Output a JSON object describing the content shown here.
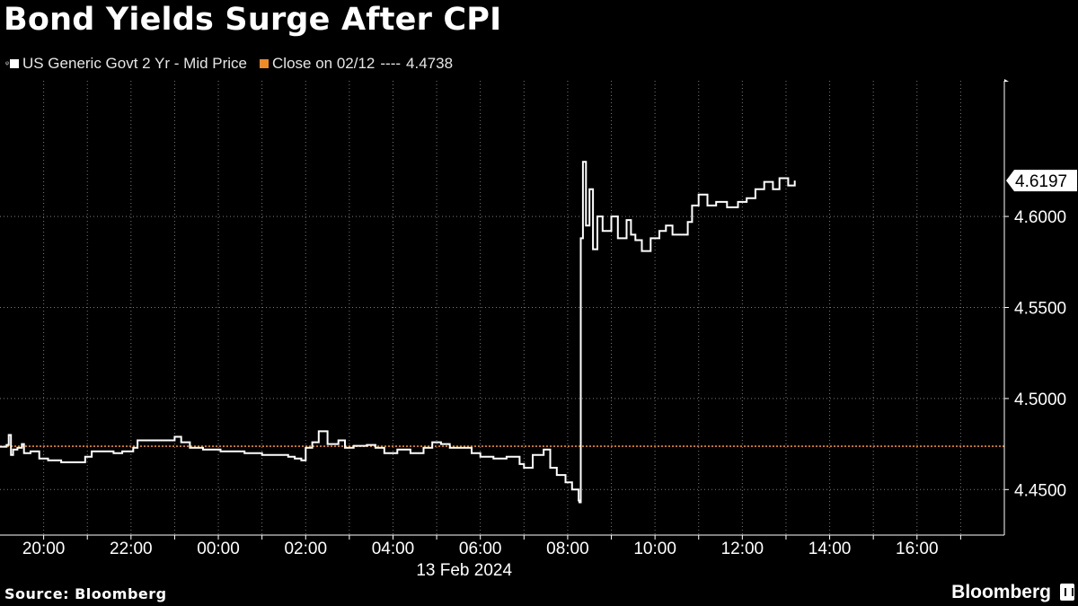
{
  "title": "Bond Yields Surge After CPI",
  "legend": {
    "series_prefix_glyph": "ᵠ",
    "series_label": "US Generic Govt 2 Yr - Mid Price",
    "reference_label": "Close on 02/12",
    "reference_dashes": "----",
    "reference_value_text": "4.4738"
  },
  "colors": {
    "background": "#000000",
    "series": "#ffffff",
    "reference": "#f08a24",
    "grid": "#7a7a7a"
  },
  "last_value_label": "4.6197",
  "footer": {
    "source": "Source: Bloomberg",
    "brand": "Bloomberg",
    "brand_icon": "bloomberg-terminal-icon"
  },
  "chart_data": {
    "type": "line",
    "title": "Bond Yields Surge After CPI",
    "date_label": "13 Feb 2024",
    "x_unit": "hours relative to 00:00 on 13 Feb 2024",
    "xlim": [
      -5.0,
      18.0
    ],
    "ylim": [
      4.425,
      4.6745
    ],
    "x_ticks": [
      -4,
      -2,
      0,
      2,
      4,
      6,
      8,
      10,
      12,
      14,
      16
    ],
    "x_tick_labels": [
      "20:00",
      "22:00",
      "00:00",
      "02:00",
      "04:00",
      "06:00",
      "08:00",
      "10:00",
      "12:00",
      "14:00",
      "16:00"
    ],
    "y_ticks": [
      4.45,
      4.5,
      4.55,
      4.6
    ],
    "y_tick_labels": [
      "4.4500",
      "4.5000",
      "4.5500",
      "4.6000"
    ],
    "grid": true,
    "axis_position": "right",
    "reference_line": {
      "name": "Close on 02/12",
      "value": 4.4738
    },
    "last_value": 4.6197,
    "series": [
      {
        "name": "US Generic Govt 2 Yr - Mid Price",
        "points": [
          [
            -5.0,
            4.4735
          ],
          [
            -4.85,
            4.4745
          ],
          [
            -4.8,
            4.48
          ],
          [
            -4.75,
            4.469
          ],
          [
            -4.7,
            4.472
          ],
          [
            -4.6,
            4.473
          ],
          [
            -4.5,
            4.475
          ],
          [
            -4.45,
            4.47
          ],
          [
            -4.3,
            4.471
          ],
          [
            -4.1,
            4.467
          ],
          [
            -3.9,
            4.466
          ],
          [
            -3.6,
            4.465
          ],
          [
            -3.2,
            4.465
          ],
          [
            -3.05,
            4.468
          ],
          [
            -2.9,
            4.471
          ],
          [
            -2.6,
            4.471
          ],
          [
            -2.4,
            4.47
          ],
          [
            -2.2,
            4.471
          ],
          [
            -1.95,
            4.473
          ],
          [
            -1.85,
            4.477
          ],
          [
            -1.5,
            4.477
          ],
          [
            -1.05,
            4.477
          ],
          [
            -1.0,
            4.479
          ],
          [
            -0.85,
            4.476
          ],
          [
            -0.65,
            4.473
          ],
          [
            -0.35,
            4.472
          ],
          [
            0.05,
            4.471
          ],
          [
            0.6,
            4.47
          ],
          [
            1.0,
            4.469
          ],
          [
            1.6,
            4.468
          ],
          [
            1.75,
            4.467
          ],
          [
            1.9,
            4.466
          ],
          [
            2.0,
            4.473
          ],
          [
            2.15,
            4.476
          ],
          [
            2.3,
            4.482
          ],
          [
            2.5,
            4.475
          ],
          [
            2.75,
            4.477
          ],
          [
            2.9,
            4.473
          ],
          [
            3.1,
            4.474
          ],
          [
            3.4,
            4.4745
          ],
          [
            3.6,
            4.473
          ],
          [
            3.8,
            4.47
          ],
          [
            4.1,
            4.472
          ],
          [
            4.4,
            4.47
          ],
          [
            4.7,
            4.473
          ],
          [
            4.9,
            4.476
          ],
          [
            5.1,
            4.475
          ],
          [
            5.3,
            4.473
          ],
          [
            5.6,
            4.473
          ],
          [
            5.8,
            4.47
          ],
          [
            6.0,
            4.468
          ],
          [
            6.3,
            4.467
          ],
          [
            6.6,
            4.468
          ],
          [
            6.9,
            4.464
          ],
          [
            7.0,
            4.462
          ],
          [
            7.2,
            4.469
          ],
          [
            7.45,
            4.472
          ],
          [
            7.6,
            4.462
          ],
          [
            7.75,
            4.458
          ],
          [
            7.95,
            4.454
          ],
          [
            8.1,
            4.45
          ],
          [
            8.25,
            4.444
          ],
          [
            8.27,
            4.443
          ],
          [
            8.3,
            4.588
          ],
          [
            8.35,
            4.63
          ],
          [
            8.42,
            4.595
          ],
          [
            8.5,
            4.615
          ],
          [
            8.58,
            4.582
          ],
          [
            8.68,
            4.6
          ],
          [
            8.8,
            4.592
          ],
          [
            9.0,
            4.6
          ],
          [
            9.15,
            4.588
          ],
          [
            9.35,
            4.598
          ],
          [
            9.45,
            4.59
          ],
          [
            9.55,
            4.587
          ],
          [
            9.7,
            4.581
          ],
          [
            9.9,
            4.588
          ],
          [
            10.1,
            4.592
          ],
          [
            10.25,
            4.595
          ],
          [
            10.4,
            4.59
          ],
          [
            10.6,
            4.59
          ],
          [
            10.75,
            4.597
          ],
          [
            10.85,
            4.606
          ],
          [
            11.0,
            4.612
          ],
          [
            11.2,
            4.606
          ],
          [
            11.4,
            4.608
          ],
          [
            11.65,
            4.605
          ],
          [
            11.9,
            4.608
          ],
          [
            12.1,
            4.61
          ],
          [
            12.3,
            4.615
          ],
          [
            12.5,
            4.619
          ],
          [
            12.7,
            4.615
          ],
          [
            12.85,
            4.621
          ],
          [
            13.05,
            4.617
          ],
          [
            13.2,
            4.6197
          ]
        ]
      }
    ]
  }
}
